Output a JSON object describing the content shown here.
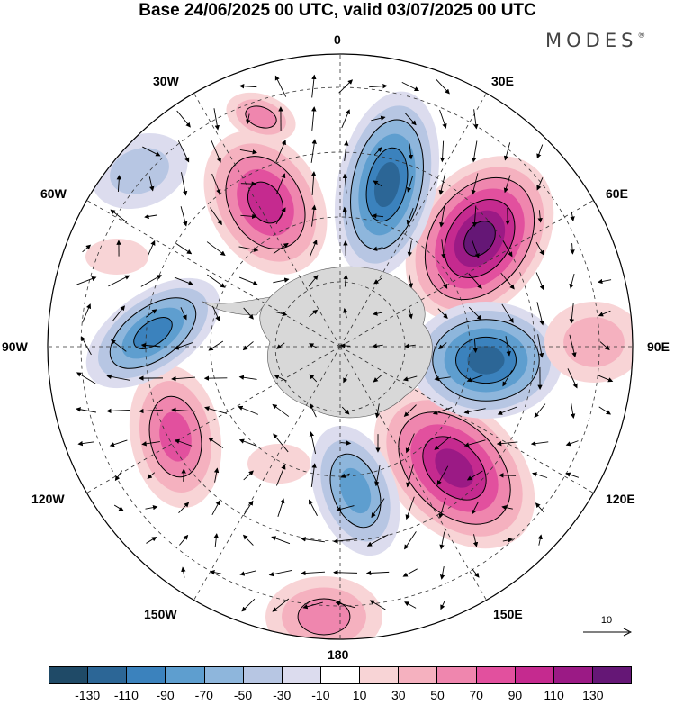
{
  "title": "Base 24/06/2025 00 UTC, valid 03/07/2025 00 UTC",
  "brand": "MODES",
  "brand_mark": "®",
  "longitude_labels": [
    "0",
    "30E",
    "60E",
    "90E",
    "120E",
    "150E",
    "180",
    "150W",
    "120W",
    "90W",
    "60W",
    "30W"
  ],
  "vector_reference": {
    "value": "10"
  },
  "colorbar": {
    "colors": [
      "#1f4a67",
      "#2c6696",
      "#3b82bd",
      "#5e9ecf",
      "#8eb6dc",
      "#b7c6e3",
      "#dcdcee",
      "#ffffff",
      "#f8d4d6",
      "#f5b1bf",
      "#ef86ae",
      "#e2509e",
      "#c52a8f",
      "#9b1a85",
      "#651776"
    ],
    "tick_labels": [
      "-130",
      "-110",
      "-90",
      "-70",
      "-50",
      "-30",
      "-10",
      "10",
      "30",
      "50",
      "70",
      "90",
      "110",
      "130"
    ]
  },
  "colors": {
    "land_shade": "#c8c8c8",
    "frame": "#000000"
  }
}
